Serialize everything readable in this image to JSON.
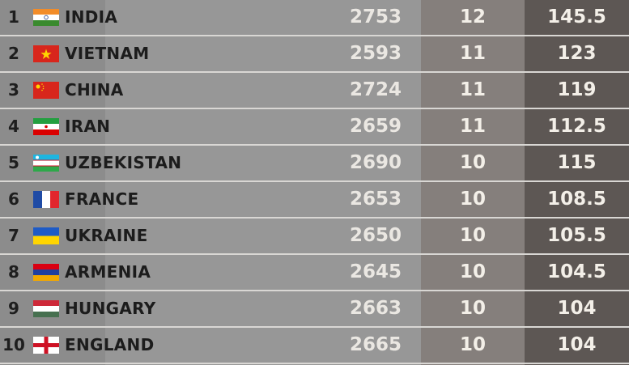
{
  "colors": {
    "rating_bg": "#979797",
    "games_bg": "#857f7c",
    "points_bg": "#5d5754",
    "divider": "#d9d7d4"
  },
  "rows": [
    {
      "rank": "1",
      "country": "INDIA",
      "flag": "india-flag-icon",
      "rating": "2753",
      "games": "12",
      "points": "145.5"
    },
    {
      "rank": "2",
      "country": "VIETNAM",
      "flag": "vietnam-flag-icon",
      "rating": "2593",
      "games": "11",
      "points": "123"
    },
    {
      "rank": "3",
      "country": "CHINA",
      "flag": "china-flag-icon",
      "rating": "2724",
      "games": "11",
      "points": "119"
    },
    {
      "rank": "4",
      "country": "IRAN",
      "flag": "iran-flag-icon",
      "rating": "2659",
      "games": "11",
      "points": "112.5"
    },
    {
      "rank": "5",
      "country": "UZBEKISTAN",
      "flag": "uzbekistan-flag-icon",
      "rating": "2690",
      "games": "10",
      "points": "115"
    },
    {
      "rank": "6",
      "country": "FRANCE",
      "flag": "france-flag-icon",
      "rating": "2653",
      "games": "10",
      "points": "108.5"
    },
    {
      "rank": "7",
      "country": "UKRAINE",
      "flag": "ukraine-flag-icon",
      "rating": "2650",
      "games": "10",
      "points": "105.5"
    },
    {
      "rank": "8",
      "country": "ARMENIA",
      "flag": "armenia-flag-icon",
      "rating": "2645",
      "games": "10",
      "points": "104.5"
    },
    {
      "rank": "9",
      "country": "HUNGARY",
      "flag": "hungary-flag-icon",
      "rating": "2663",
      "games": "10",
      "points": "104"
    },
    {
      "rank": "10",
      "country": "ENGLAND",
      "flag": "england-flag-icon",
      "rating": "2665",
      "games": "10",
      "points": "104"
    }
  ]
}
